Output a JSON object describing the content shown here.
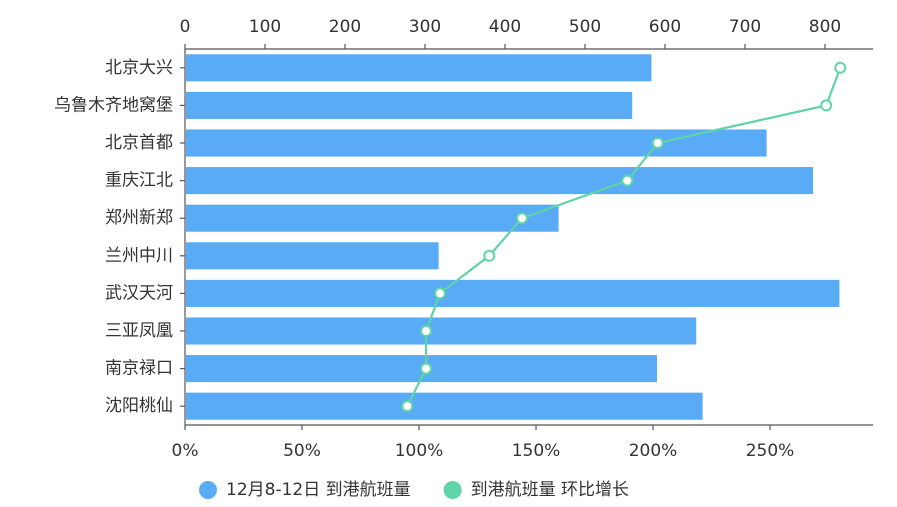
{
  "chart_data": {
    "type": "bar",
    "categories": [
      "北京大兴",
      "乌鲁木齐地窝堡",
      "北京首都",
      "重庆江北",
      "郑州新郑",
      "兰州中川",
      "武汉天河",
      "三亚凤凰",
      "南京禄口",
      "沈阳桃仙"
    ],
    "series": [
      {
        "name": "12月8-12日 到港航班量",
        "color": "#5aabf5",
        "type": "bar",
        "axis": "x",
        "values": [
          583,
          559,
          727,
          785,
          467,
          317,
          818,
          639,
          590,
          647
        ]
      },
      {
        "name": "到港航班量 环比增长",
        "color": "#5fd4a8",
        "type": "line",
        "axis": "x2",
        "values": [
          280,
          274,
          202,
          189,
          144,
          130,
          109,
          103,
          103,
          95
        ]
      }
    ],
    "xlim": [
      0,
      860
    ],
    "xticks": [
      0,
      100,
      200,
      300,
      400,
      500,
      600,
      700,
      800
    ],
    "x2lim": [
      0,
      294
    ],
    "x2ticks": [
      {
        "value": 0,
        "label": "0%"
      },
      {
        "value": 50,
        "label": "50%"
      },
      {
        "value": 100,
        "label": "100%"
      },
      {
        "value": 150,
        "label": "150%"
      },
      {
        "value": 200,
        "label": "200%"
      },
      {
        "value": 250,
        "label": "250%"
      }
    ]
  }
}
